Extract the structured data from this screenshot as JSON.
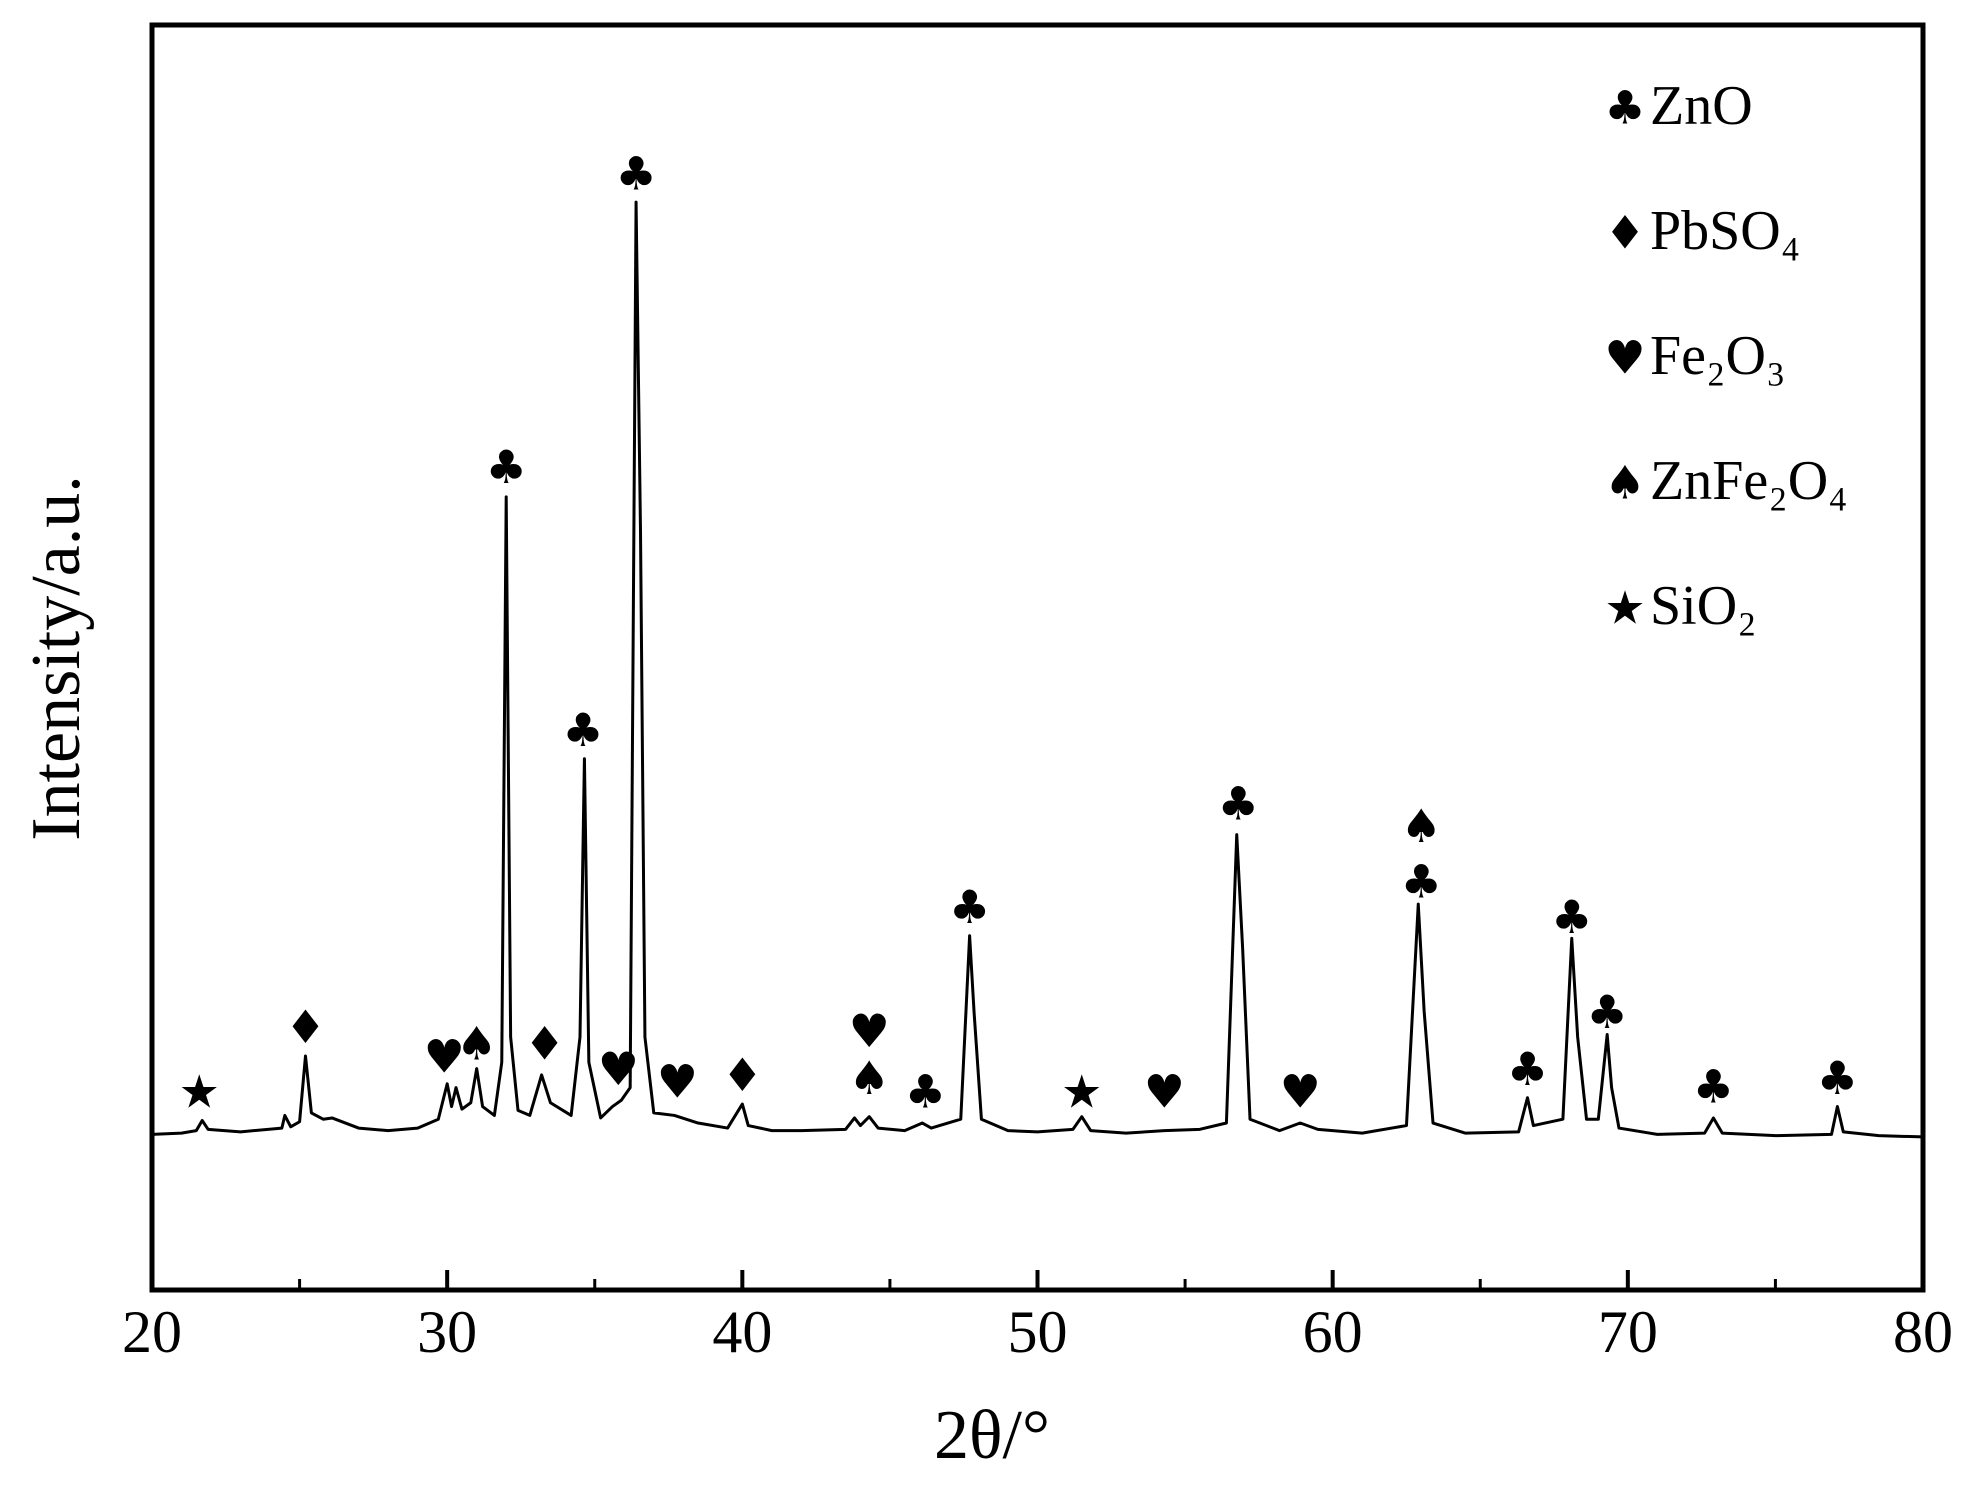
{
  "chart_data": {
    "type": "line",
    "xlabel": "2θ/°",
    "ylabel": "Intensity/a.u.",
    "color": "#000000",
    "xlim": [
      20,
      80
    ],
    "ylim": [
      0,
      100
    ],
    "xticks": [
      20,
      30,
      40,
      50,
      60,
      70,
      80
    ],
    "xminorticks": [
      25,
      35,
      45,
      55,
      65,
      75
    ],
    "x": [
      20,
      21,
      21.5,
      21.7,
      21.9,
      23,
      24.4,
      24.5,
      24.7,
      25.0,
      25.2,
      25.4,
      25.8,
      26.1,
      27,
      28,
      29,
      29.7,
      30.0,
      30.15,
      30.3,
      30.5,
      30.8,
      31.0,
      31.2,
      31.6,
      31.85,
      32.0,
      32.15,
      32.4,
      32.8,
      33.2,
      33.5,
      34.2,
      34.5,
      34.65,
      34.8,
      35.2,
      35.6,
      35.9,
      36.2,
      36.4,
      36.55,
      36.7,
      37.0,
      37.7,
      38.5,
      39.5,
      40.0,
      40.2,
      41,
      42,
      43.5,
      43.8,
      44.0,
      44.3,
      44.6,
      45.5,
      46.1,
      46.4,
      47.4,
      47.7,
      47.85,
      48.1,
      49,
      50,
      51.2,
      51.5,
      51.8,
      53,
      54.3,
      55.5,
      56.4,
      56.75,
      56.95,
      57.2,
      58.2,
      58.9,
      59.5,
      61,
      62.5,
      62.9,
      63.1,
      63.4,
      64.5,
      66.3,
      66.6,
      66.8,
      67.8,
      68.1,
      68.3,
      68.6,
      69.0,
      69.3,
      69.45,
      69.7,
      71,
      72.6,
      72.9,
      73.2,
      75,
      76.9,
      77.1,
      77.3,
      78.5,
      80
    ],
    "values": [
      12.3,
      12.4,
      12.6,
      13.4,
      12.7,
      12.5,
      12.8,
      13.8,
      12.9,
      13.3,
      18.5,
      14,
      13.5,
      13.6,
      12.8,
      12.6,
      12.8,
      13.5,
      16.3,
      14.5,
      16,
      14.3,
      14.8,
      17.5,
      14.5,
      13.8,
      18,
      62.7,
      20,
      14.2,
      13.8,
      17,
      14.8,
      13.8,
      20,
      42,
      18,
      13.6,
      14.5,
      15,
      16,
      86,
      60,
      20,
      14,
      13.8,
      13.2,
      12.8,
      14.7,
      13,
      12.6,
      12.6,
      12.7,
      13.6,
      13,
      13.7,
      12.8,
      12.6,
      13.2,
      12.8,
      13.5,
      28,
      22,
      13.5,
      12.6,
      12.5,
      12.7,
      13.7,
      12.6,
      12.4,
      12.6,
      12.7,
      13.2,
      36,
      27,
      13.5,
      12.6,
      13.2,
      12.7,
      12.4,
      13,
      30.5,
      22,
      13.2,
      12.4,
      12.5,
      15.2,
      13,
      13.5,
      27.8,
      20,
      13.5,
      13.5,
      20.2,
      16,
      12.8,
      12.3,
      12.4,
      13.6,
      12.4,
      12.2,
      12.3,
      14.5,
      12.5,
      12.2,
      12.1
    ],
    "annotations": [
      {
        "text": "♣",
        "x": 32.0,
        "y": 64.8
      },
      {
        "text": "♣",
        "x": 34.6,
        "y": 44
      },
      {
        "text": "♣",
        "x": 36.4,
        "y": 88
      },
      {
        "text": "♣",
        "x": 47.7,
        "y": 30
      },
      {
        "text": "♣",
        "x": 56.8,
        "y": 38.2
      },
      {
        "text": "♣",
        "x": 63.0,
        "y": 32
      },
      {
        "text": "♣",
        "x": 68.1,
        "y": 29.2
      },
      {
        "text": "♣",
        "x": 69.3,
        "y": 21.7
      },
      {
        "text": "♣",
        "x": 66.6,
        "y": 17.2
      },
      {
        "text": "♣",
        "x": 72.9,
        "y": 15.8
      },
      {
        "text": "♣",
        "x": 77.1,
        "y": 16.5
      },
      {
        "text": "♣",
        "x": 46.2,
        "y": 15.4
      },
      {
        "text": "♦",
        "x": 25.2,
        "y": 20.5
      },
      {
        "text": "♦",
        "x": 33.3,
        "y": 19.2
      },
      {
        "text": "♦",
        "x": 40.0,
        "y": 16.7
      },
      {
        "text": "♥",
        "x": 29.9,
        "y": 18.2
      },
      {
        "text": "♥",
        "x": 35.8,
        "y": 17.2
      },
      {
        "text": "♥",
        "x": 37.8,
        "y": 16.2
      },
      {
        "text": "♥",
        "x": 44.3,
        "y": 20.2
      },
      {
        "text": "♥",
        "x": 54.3,
        "y": 15.4
      },
      {
        "text": "♥",
        "x": 58.9,
        "y": 15.4
      },
      {
        "text": "♠",
        "x": 31.0,
        "y": 19.2
      },
      {
        "text": "♠",
        "x": 44.3,
        "y": 16.5
      },
      {
        "text": "♠",
        "x": 63.0,
        "y": 36.4
      },
      {
        "text": "★",
        "x": 21.6,
        "y": 15.4
      },
      {
        "text": "★",
        "x": 51.5,
        "y": 15.4
      }
    ],
    "legend": [
      {
        "symbol": "♣",
        "label": "ZnO"
      },
      {
        "symbol": "♦",
        "label": "PbSO₄"
      },
      {
        "symbol": "♥",
        "label": "Fe₂O₃"
      },
      {
        "symbol": "♠",
        "label": "ZnFe₂O₄"
      },
      {
        "symbol": "★",
        "label": "SiO₂"
      }
    ]
  }
}
